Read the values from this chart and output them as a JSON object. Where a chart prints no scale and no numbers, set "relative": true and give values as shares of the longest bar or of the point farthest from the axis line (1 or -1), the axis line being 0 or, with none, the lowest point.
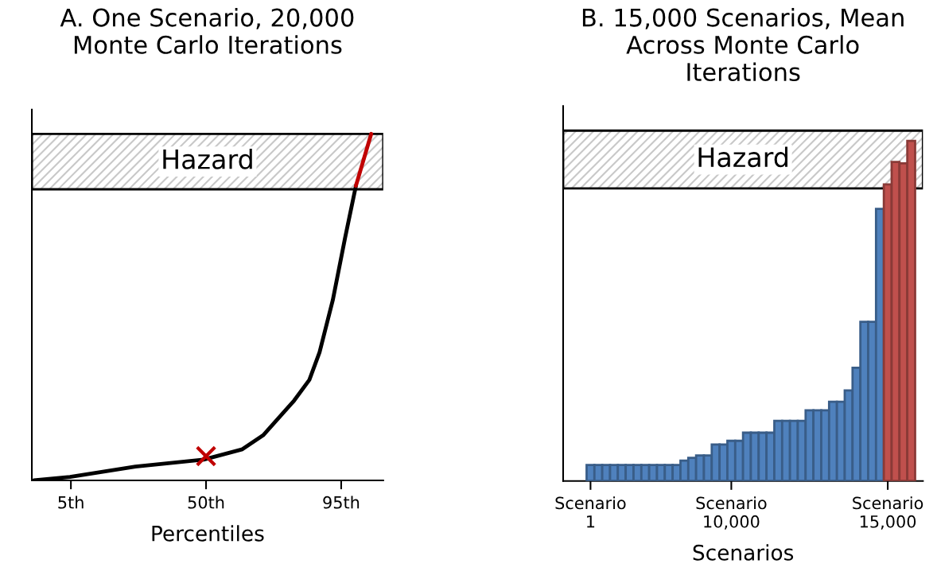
{
  "chart_data": [
    {
      "type": "line",
      "title": "A. One Scenario, 20,000\nMonte Carlo Iterations",
      "xlabel": "Percentiles",
      "relative": true,
      "xlim": [
        -8,
        109
      ],
      "xticks": [
        {
          "value": 5,
          "label": "5th"
        },
        {
          "value": 50,
          "label": "50th"
        },
        {
          "value": 95,
          "label": "95th"
        }
      ],
      "tick_labels": "x",
      "grid": false,
      "legend": false,
      "line_style": "solid",
      "series": [
        {
          "color": "#000000",
          "x": [
            -7.3,
            4.7,
            26.5,
            49.2,
            62.1,
            69.0,
            79.3,
            84.4,
            87.8,
            92.2,
            96.3,
            99.9
          ],
          "values": [
            0.0,
            0.01,
            0.04,
            0.06,
            0.09,
            0.13,
            0.23,
            0.29,
            0.37,
            0.52,
            0.7,
            0.85
          ]
        },
        {
          "color": "#c00000",
          "x": [
            99.9,
            105.0
          ],
          "values": [
            0.85,
            1.0
          ]
        },
        {
          "type": "scatter",
          "marker": "cross",
          "color": "#c00000",
          "x": [
            50
          ],
          "values": [
            0.07
          ]
        }
      ],
      "bands": [
        {
          "axis": "y",
          "from": 0.84,
          "to": 1.0,
          "label": "Hazard",
          "color": "#c8c8c8"
        }
      ]
    },
    {
      "type": "bar",
      "title": "B. 15,000 Scenarios, Mean\nAcross Monte Carlo\nIterations",
      "xlabel": "Scenarios",
      "relative": true,
      "tick_labels": "x",
      "grid": false,
      "legend": false,
      "categories": [
        "Scenario\n1",
        null,
        null,
        null,
        null,
        null,
        null,
        null,
        null,
        null,
        null,
        null,
        null,
        null,
        null,
        null,
        null,
        null,
        "Scenario\n10,000",
        null,
        null,
        null,
        null,
        null,
        null,
        null,
        null,
        null,
        null,
        null,
        null,
        null,
        null,
        null,
        null,
        null,
        null,
        null,
        "Scenario\n15,000",
        null,
        null,
        null
      ],
      "values": [
        0.047,
        0.047,
        0.047,
        0.047,
        0.047,
        0.047,
        0.047,
        0.047,
        0.047,
        0.047,
        0.047,
        0.047,
        0.06,
        0.068,
        0.075,
        0.075,
        0.107,
        0.107,
        0.118,
        0.118,
        0.142,
        0.142,
        0.142,
        0.142,
        0.177,
        0.177,
        0.177,
        0.177,
        0.208,
        0.208,
        0.208,
        0.233,
        0.233,
        0.266,
        0.333,
        0.468,
        0.468,
        0.8,
        0.872,
        0.938,
        0.934,
        1.0
      ],
      "colors": [
        "#4f81bd",
        "#4f81bd",
        "#4f81bd",
        "#4f81bd",
        "#4f81bd",
        "#4f81bd",
        "#4f81bd",
        "#4f81bd",
        "#4f81bd",
        "#4f81bd",
        "#4f81bd",
        "#4f81bd",
        "#4f81bd",
        "#4f81bd",
        "#4f81bd",
        "#4f81bd",
        "#4f81bd",
        "#4f81bd",
        "#4f81bd",
        "#4f81bd",
        "#4f81bd",
        "#4f81bd",
        "#4f81bd",
        "#4f81bd",
        "#4f81bd",
        "#4f81bd",
        "#4f81bd",
        "#4f81bd",
        "#4f81bd",
        "#4f81bd",
        "#4f81bd",
        "#4f81bd",
        "#4f81bd",
        "#4f81bd",
        "#4f81bd",
        "#4f81bd",
        "#4f81bd",
        "#4f81bd",
        "#c0504d",
        "#c0504d",
        "#c0504d",
        "#c0504d"
      ],
      "bands": [
        {
          "axis": "y",
          "from": 0.86,
          "to": 1.03,
          "label": "Hazard",
          "color": "#c8c8c8"
        }
      ]
    }
  ]
}
